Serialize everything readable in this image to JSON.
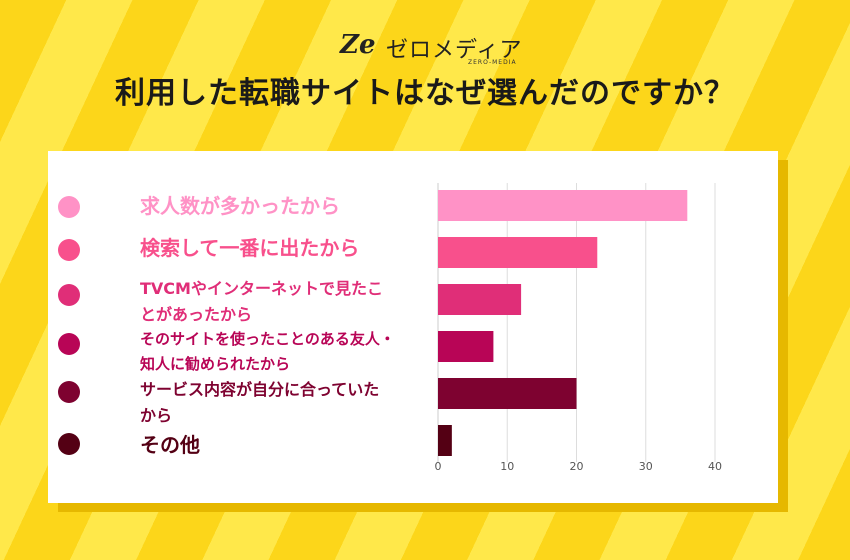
{
  "header": {
    "logo_mark": "Ze",
    "logo_text": "ゼロメディア",
    "logo_sub": "ZERO-MEDIA",
    "title": "利用した転職サイトはなぜ選んだのですか？"
  },
  "colors": {
    "background": "#fde02a",
    "card": "#ffffff",
    "grid": "#dddddd",
    "series": [
      "#ff92c6",
      "#f8508c",
      "#e02e78",
      "#b80556",
      "#7e0230",
      "#540014"
    ]
  },
  "chart_data": {
    "type": "bar",
    "orientation": "horizontal",
    "title": "利用した転職サイトはなぜ選んだのですか？",
    "categories": [
      [
        "求人数が多かったから"
      ],
      [
        "検索して一番に出たから"
      ],
      [
        "TVCMやインターネットで見たこ",
        "とがあったから"
      ],
      [
        "そのサイトを使ったことのある友人・",
        "知人に勧められたから"
      ],
      [
        "サービス内容が自分に合っていた",
        "から"
      ],
      [
        "その他"
      ]
    ],
    "values": [
      36,
      23,
      12,
      8,
      20,
      2
    ],
    "xlim": [
      0,
      40
    ],
    "xticks": [
      "0",
      "10",
      "20",
      "30",
      "40"
    ],
    "grid": true,
    "legend_position": "left"
  }
}
